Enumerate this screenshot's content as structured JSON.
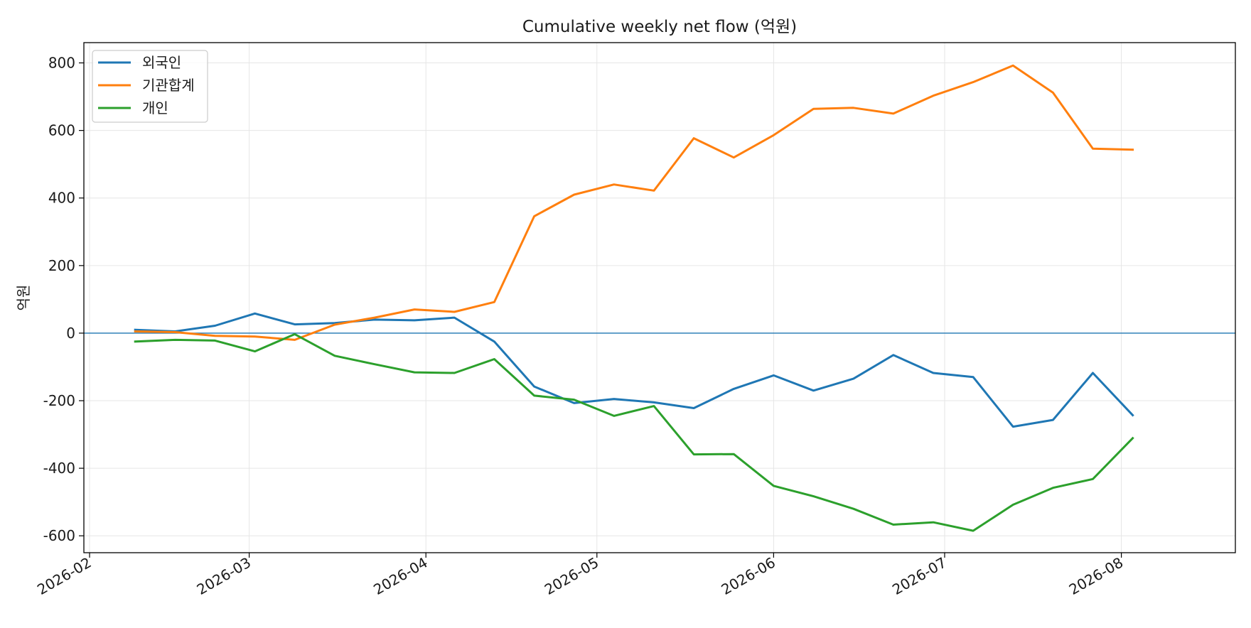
{
  "chart_data": {
    "type": "line",
    "title": "Cumulative weekly net flow (억원)",
    "xlabel": "",
    "ylabel": "억원",
    "x": [
      "2026-02-09",
      "2026-02-16",
      "2026-02-23",
      "2026-03-02",
      "2026-03-09",
      "2026-03-16",
      "2026-03-23",
      "2026-03-30",
      "2026-04-06",
      "2026-04-13",
      "2026-04-20",
      "2026-04-27",
      "2026-05-04",
      "2026-05-11",
      "2026-05-18",
      "2026-05-25",
      "2026-06-01",
      "2026-06-08",
      "2026-06-15",
      "2026-06-22",
      "2026-06-29",
      "2026-07-06",
      "2026-07-13",
      "2026-07-20",
      "2026-07-27",
      "2026-08-03"
    ],
    "series": [
      {
        "name": "외국인",
        "color": "#1f77b4",
        "values": [
          10,
          5,
          22,
          58,
          26,
          30,
          40,
          38,
          46,
          -25,
          -158,
          -207,
          -195,
          -205,
          -222,
          -165,
          -125,
          -170,
          -135,
          -65,
          -118,
          -130,
          -277,
          -257,
          -118,
          -243
        ]
      },
      {
        "name": "기관합계",
        "color": "#ff7f0e",
        "values": [
          5,
          3,
          -8,
          -10,
          -20,
          25,
          46,
          70,
          63,
          92,
          346,
          410,
          440,
          422,
          577,
          520,
          586,
          664,
          667,
          650,
          703,
          743,
          792,
          712,
          546,
          543
        ]
      },
      {
        "name": "개인",
        "color": "#2ca02c",
        "values": [
          -25,
          -20,
          -22,
          -54,
          -3,
          -67,
          -92,
          -116,
          -118,
          -77,
          -185,
          -197,
          -245,
          -216,
          -359,
          -358,
          -452,
          -483,
          -520,
          -567,
          -560,
          -585,
          -508,
          -458,
          -432,
          -311
        ]
      }
    ],
    "xticks": [
      "2026-02",
      "2026-03",
      "2026-04",
      "2026-05",
      "2026-06",
      "2026-07",
      "2026-08"
    ],
    "xtick_dates": [
      "2026-02-01",
      "2026-03-01",
      "2026-04-01",
      "2026-05-01",
      "2026-06-01",
      "2026-07-01",
      "2026-08-01"
    ],
    "xlim": [
      "2026-01-31",
      "2026-08-21"
    ],
    "yticks": [
      800,
      600,
      400,
      200,
      0,
      -200,
      -400,
      -600
    ],
    "ytick_labels": [
      "800",
      "600",
      "400",
      "200",
      "0",
      "-200",
      "-400",
      "-600"
    ],
    "ylim": [
      -650,
      860
    ],
    "reference_line": {
      "y": 0,
      "color": "#1f77b4"
    },
    "grid": true,
    "legend_position": "top-left"
  }
}
